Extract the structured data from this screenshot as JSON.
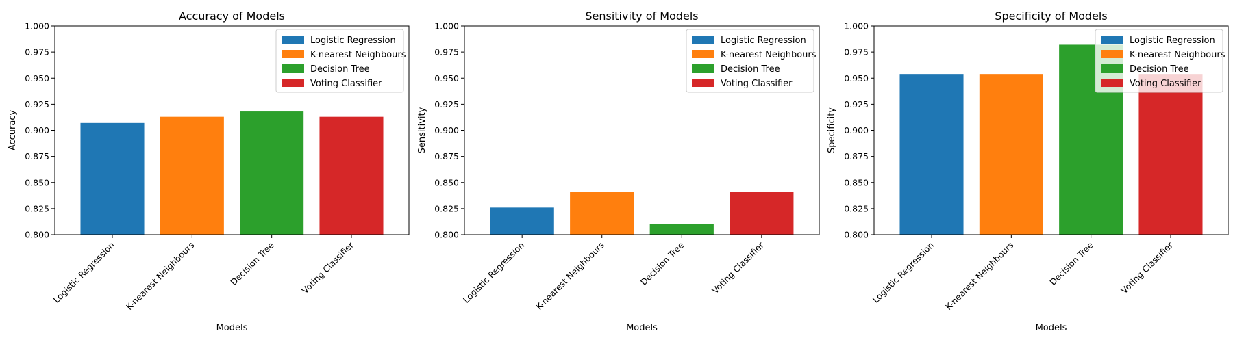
{
  "colors": {
    "Logistic Regression": "#1f77b4",
    "K-nearest Neighbours": "#ff7f0e",
    "Decision Tree": "#2ca02c",
    "Voting Classifier": "#d62728"
  },
  "chart_data": [
    {
      "type": "bar",
      "title": "Accuracy of Models",
      "xlabel": "Models",
      "ylabel": "Accuracy",
      "ylim": [
        0.8,
        1.0
      ],
      "yticks": [
        "0.800",
        "0.825",
        "0.850",
        "0.875",
        "0.900",
        "0.925",
        "0.950",
        "0.975",
        "1.000"
      ],
      "categories": [
        "Logistic Regression",
        "K-nearest Neighbours",
        "Decision Tree",
        "Voting Classifier"
      ],
      "values": [
        0.907,
        0.913,
        0.918,
        0.913
      ],
      "legend": [
        "Logistic Regression",
        "K-nearest Neighbours",
        "Decision Tree",
        "Voting Classifier"
      ],
      "legend_position": "top-right"
    },
    {
      "type": "bar",
      "title": "Sensitivity of Models",
      "xlabel": "Models",
      "ylabel": "Sensitivity",
      "ylim": [
        0.8,
        1.0
      ],
      "yticks": [
        "0.800",
        "0.825",
        "0.850",
        "0.875",
        "0.900",
        "0.925",
        "0.950",
        "0.975",
        "1.000"
      ],
      "categories": [
        "Logistic Regression",
        "K-nearest Neighbours",
        "Decision Tree",
        "Voting Classifier"
      ],
      "values": [
        0.826,
        0.841,
        0.81,
        0.841
      ],
      "legend": [
        "Logistic Regression",
        "K-nearest Neighbours",
        "Decision Tree",
        "Voting Classifier"
      ],
      "legend_position": "top-right"
    },
    {
      "type": "bar",
      "title": "Specificity of Models",
      "xlabel": "Models",
      "ylabel": "Specificity",
      "ylim": [
        0.8,
        1.0
      ],
      "yticks": [
        "0.800",
        "0.825",
        "0.850",
        "0.875",
        "0.900",
        "0.925",
        "0.950",
        "0.975",
        "1.000"
      ],
      "categories": [
        "Logistic Regression",
        "K-nearest Neighbours",
        "Decision Tree",
        "Voting Classifier"
      ],
      "values": [
        0.954,
        0.954,
        0.982,
        0.954
      ],
      "legend": [
        "Logistic Regression",
        "K-nearest Neighbours",
        "Decision Tree",
        "Voting Classifier"
      ],
      "legend_position": "top-right"
    }
  ]
}
